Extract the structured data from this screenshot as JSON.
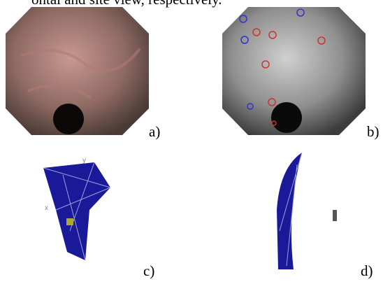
{
  "caption_fragment": "ontal and site view, respectively.",
  "panels": [
    {
      "label": "a)"
    },
    {
      "label": "b)"
    },
    {
      "label": "c)"
    },
    {
      "label": "d)"
    }
  ],
  "axis_labels": {
    "x": "x",
    "y": "y"
  }
}
